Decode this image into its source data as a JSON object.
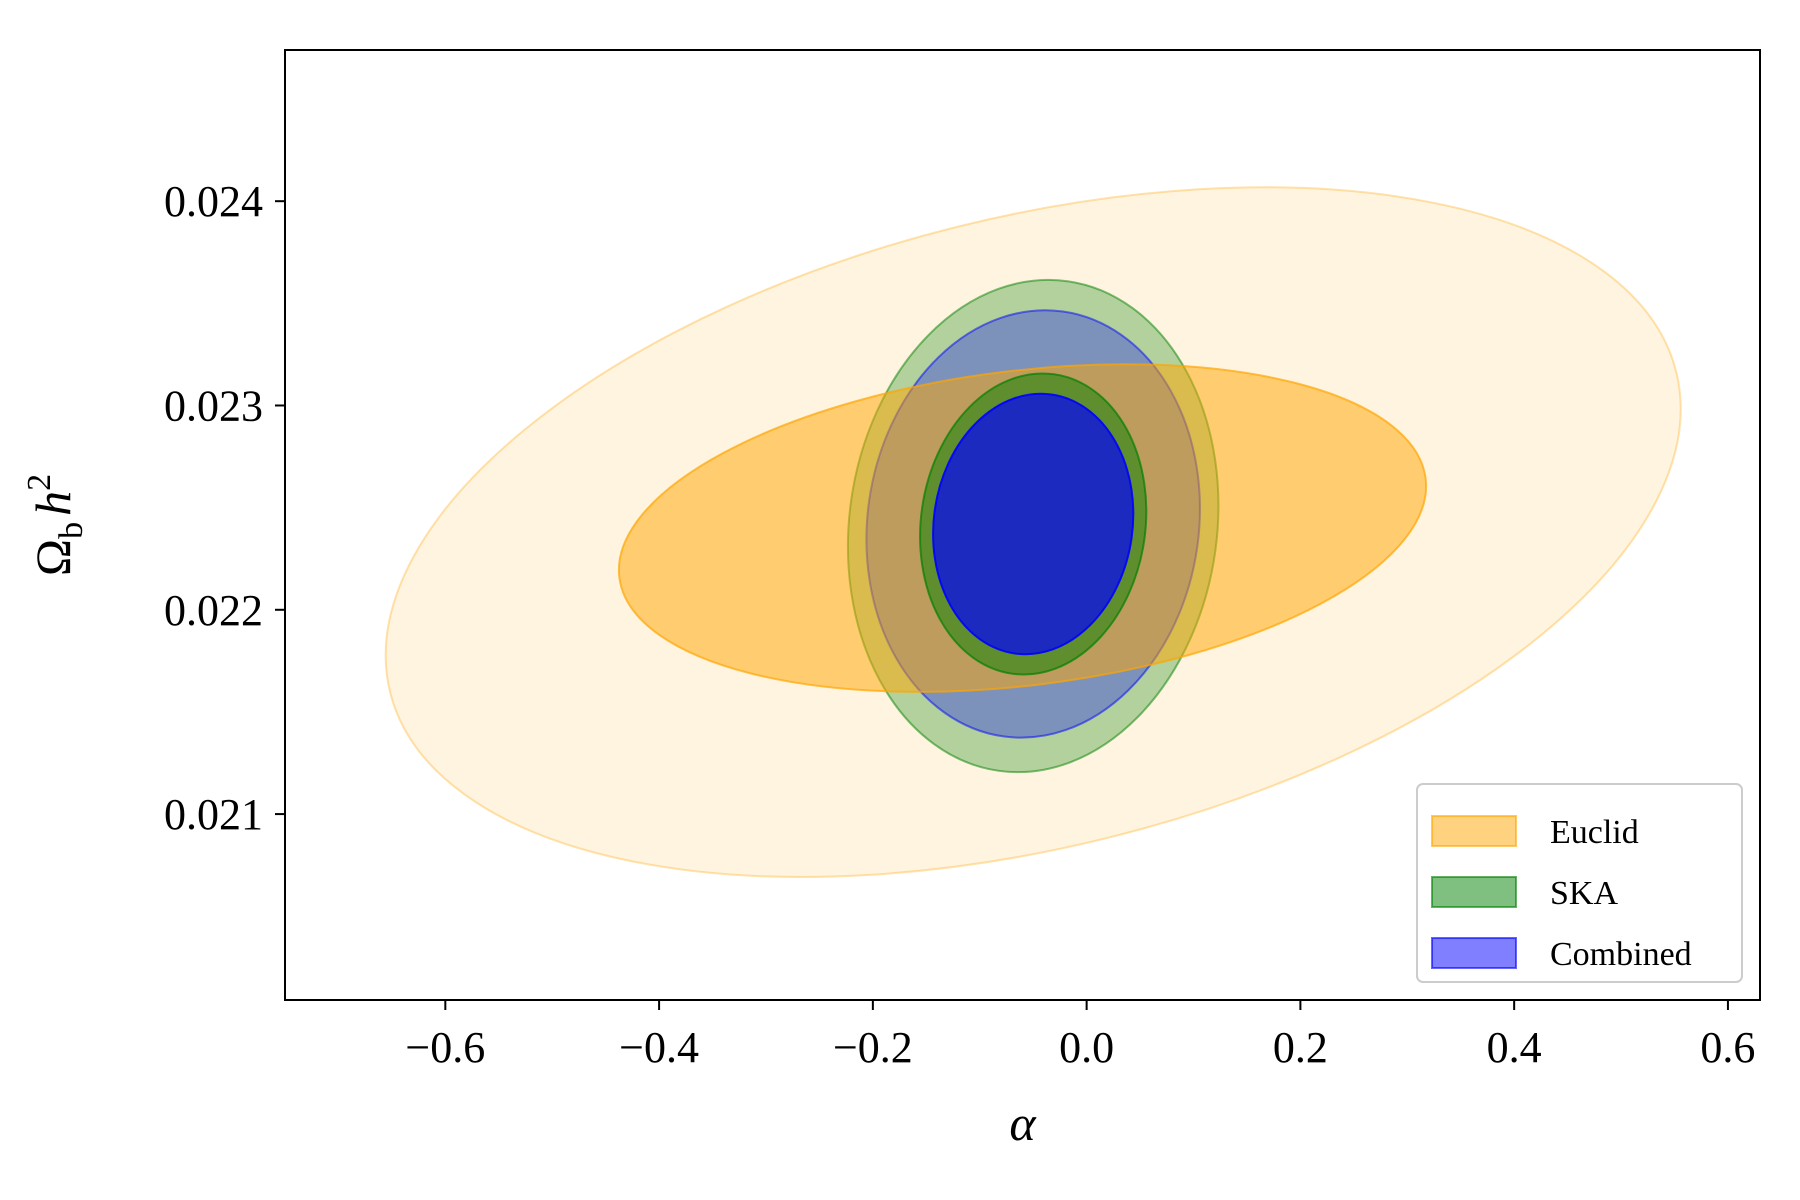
{
  "chart_data": {
    "type": "contour",
    "xlabel": "α",
    "ylabel": "Ω_b h^2",
    "xlim": [
      -0.75,
      0.63
    ],
    "ylim": [
      0.02009,
      0.02474
    ],
    "xticks": [
      -0.6,
      -0.4,
      -0.2,
      0.0,
      0.2,
      0.4,
      0.6
    ],
    "xtick_labels": [
      "−0.6",
      "−0.4",
      "−0.2",
      "0.0",
      "0.2",
      "0.4",
      "0.6"
    ],
    "yticks": [
      0.021,
      0.022,
      0.023,
      0.024
    ],
    "ytick_labels": [
      "0.021",
      "0.022",
      "0.023",
      "0.024"
    ],
    "grid": false,
    "legend_position": "lower-right",
    "series": [
      {
        "name": "Euclid",
        "color": "#ffa500",
        "contours": [
          {
            "level": "2sigma",
            "center": [
              -0.05,
              0.02238
            ],
            "rx": 0.62,
            "ry": 0.00154,
            "angle_deg": -14,
            "opacity": 0.12
          },
          {
            "level": "1sigma",
            "center": [
              -0.06,
              0.0224
            ],
            "rx": 0.38,
            "ry": 0.00077,
            "angle_deg": -7,
            "opacity": 0.5
          }
        ]
      },
      {
        "name": "SKA",
        "color": "#008000",
        "contours": [
          {
            "level": "2sigma",
            "center": [
              -0.05,
              0.02241
            ],
            "rx": 0.172,
            "ry": 0.00121,
            "angle_deg": 8,
            "opacity": 0.3
          },
          {
            "level": "1sigma",
            "center": [
              -0.05,
              0.02242
            ],
            "rx": 0.105,
            "ry": 0.00074,
            "angle_deg": 8,
            "opacity": 0.5
          }
        ]
      },
      {
        "name": "Combined",
        "color": "#0000ff",
        "contours": [
          {
            "level": "2sigma",
            "center": [
              -0.05,
              0.02242
            ],
            "rx": 0.155,
            "ry": 0.00105,
            "angle_deg": 8,
            "opacity": 0.3
          },
          {
            "level": "1sigma",
            "center": [
              -0.05,
              0.02242
            ],
            "rx": 0.093,
            "ry": 0.00064,
            "angle_deg": 8,
            "opacity": 0.7
          }
        ]
      }
    ],
    "legend": [
      {
        "label": "Euclid",
        "color": "#ffa500"
      },
      {
        "label": "SKA",
        "color": "#008000"
      },
      {
        "label": "Combined",
        "color": "#0000ff"
      }
    ]
  }
}
